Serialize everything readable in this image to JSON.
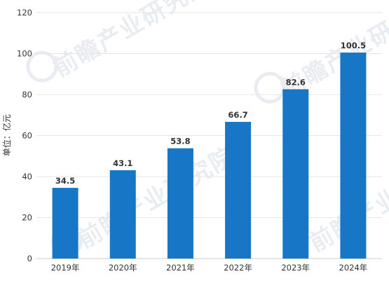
{
  "chart_data": {
    "type": "bar",
    "categories": [
      "2019年",
      "2020年",
      "2021年",
      "2022年",
      "2023年",
      "2024年"
    ],
    "values": [
      34.5,
      43.1,
      53.8,
      66.7,
      82.6,
      100.5
    ],
    "value_labels": [
      "34.5",
      "43.1",
      "53.8",
      "66.7",
      "82.6",
      "100.5"
    ],
    "title": "",
    "xlabel": "",
    "ylabel": "单位：亿元",
    "ylim": [
      0,
      120
    ],
    "yticks": [
      0,
      20,
      40,
      60,
      80,
      100,
      120
    ],
    "grid": true,
    "bar_color": "#1776c6",
    "grid_color": "#e6e6e6"
  },
  "watermark": {
    "brand": "前瞻产业研究院"
  }
}
